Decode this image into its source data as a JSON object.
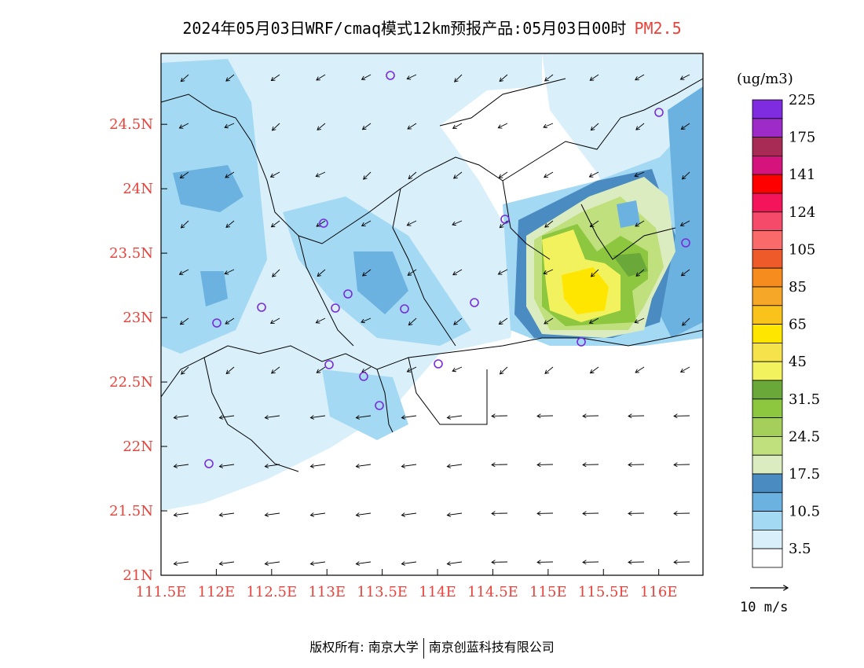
{
  "title": {
    "main": "2024年05月03日WRF/cmaq模式12km预报产品:05月03日00时",
    "variable": "PM2.5"
  },
  "axes": {
    "lat_labels": [
      "24.5N",
      "24N",
      "23.5N",
      "23N",
      "22.5N",
      "22N",
      "21.5N",
      "21N"
    ],
    "lat_values": [
      24.5,
      24,
      23.5,
      23,
      22.5,
      22,
      21.5,
      21
    ],
    "lon_labels": [
      "111.5E",
      "112E",
      "112.5E",
      "113E",
      "113.5E",
      "114E",
      "114.5E",
      "115E",
      "115.5E",
      "116E"
    ],
    "lon_values": [
      111.5,
      112,
      112.5,
      113,
      113.5,
      114,
      114.5,
      115,
      115.5,
      116
    ],
    "lat_range": [
      21,
      25.05
    ],
    "lon_range": [
      111.5,
      116.4
    ],
    "label_color": "#e8423a"
  },
  "colorbar": {
    "unit": "(ug/m3)",
    "colors": [
      "#ffffff",
      "#d9effa",
      "#a4d9f4",
      "#6cb2e0",
      "#4a8bc2",
      "#dcecc1",
      "#bfe07c",
      "#a4cf5a",
      "#8dc63f",
      "#6aa83a",
      "#f2f25e",
      "#f4e34a",
      "#ffe600",
      "#f9c31b",
      "#f7a728",
      "#f78c1e",
      "#ef5a2b",
      "#fb6a6a",
      "#f64a6a",
      "#f4145a",
      "#ff0000",
      "#d4147c",
      "#a82b56",
      "#9c2bc8",
      "#7f2be0"
    ],
    "labels": [
      "3.5",
      "10.5",
      "17.5",
      "24.5",
      "31.5",
      "45",
      "65",
      "85",
      "105",
      "124",
      "141",
      "175",
      "225"
    ]
  },
  "wind_scale": {
    "label": "10 m/s"
  },
  "footer": {
    "left": "版权所有: 南京大学",
    "right": "南京创蓝科技有限公司"
  }
}
